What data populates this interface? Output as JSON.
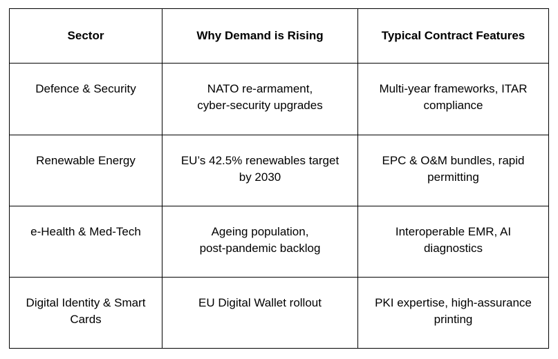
{
  "table": {
    "headers": [
      "Sector",
      "Why Demand is Rising",
      "Typical Contract Features"
    ],
    "rows": [
      {
        "sector": [
          "Defence & Security"
        ],
        "why": [
          "NATO re-armament,",
          "cyber-security upgrades"
        ],
        "features": [
          "Multi-year frameworks, ITAR",
          "compliance"
        ]
      },
      {
        "sector": [
          "Renewable Energy"
        ],
        "why": [
          "EU’s 42.5% renewables target",
          "by 2030"
        ],
        "features": [
          "EPC & O&M bundles, rapid",
          "permitting"
        ]
      },
      {
        "sector": [
          "e-Health & Med-Tech"
        ],
        "why": [
          "Ageing population,",
          "post-pandemic backlog"
        ],
        "features": [
          "Interoperable EMR, AI",
          "diagnostics"
        ]
      },
      {
        "sector": [
          "Digital Identity & Smart",
          "Cards"
        ],
        "why": [
          "EU Digital Wallet rollout"
        ],
        "features": [
          "PKI expertise, high-assurance",
          "printing"
        ]
      }
    ]
  }
}
